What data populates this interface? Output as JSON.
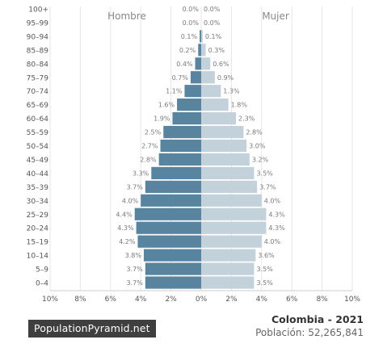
{
  "chart_data": {
    "type": "bar",
    "orientation": "horizontal-pyramid",
    "categories": [
      "0-4",
      "5-9",
      "10-14",
      "15-19",
      "20-24",
      "25-29",
      "30-34",
      "35-39",
      "40-44",
      "45-49",
      "50-54",
      "55-59",
      "60-64",
      "65-69",
      "70-74",
      "75-79",
      "80-84",
      "85-89",
      "90-94",
      "95-99",
      "100+"
    ],
    "category_labels": [
      "0–4",
      "5–9",
      "10–14",
      "15–19",
      "20–24",
      "25–29",
      "30–34",
      "35–39",
      "40–44",
      "45–49",
      "50–54",
      "55–59",
      "60–64",
      "65–69",
      "70–74",
      "75–79",
      "80–84",
      "85–89",
      "90–94",
      "95–99",
      "100+"
    ],
    "series": [
      {
        "name": "Hombre",
        "color": "#58849f",
        "values": [
          3.7,
          3.7,
          3.8,
          4.2,
          4.3,
          4.4,
          4.0,
          3.7,
          3.3,
          2.8,
          2.7,
          2.5,
          1.9,
          1.6,
          1.1,
          0.7,
          0.4,
          0.2,
          0.1,
          0.0,
          0.0
        ]
      },
      {
        "name": "Mujer",
        "color": "#c3d1da",
        "values": [
          3.5,
          3.5,
          3.6,
          4.0,
          4.3,
          4.3,
          4.0,
          3.7,
          3.5,
          3.2,
          3.0,
          2.8,
          2.3,
          1.8,
          1.3,
          0.9,
          0.6,
          0.3,
          0.1,
          0.0,
          0.0
        ]
      }
    ],
    "data_labels_left": [
      "3.7%",
      "3.7%",
      "3.8%",
      "4.2%",
      "4.3%",
      "4.4%",
      "4.0%",
      "3.7%",
      "3.3%",
      "2.8%",
      "2.7%",
      "2.5%",
      "1.9%",
      "1.6%",
      "1.1%",
      "0.7%",
      "0.4%",
      "0.2%",
      "0.1%",
      "0.0%",
      "0.0%"
    ],
    "data_labels_right": [
      "3.5%",
      "3.5%",
      "3.6%",
      "4.0%",
      "4.3%",
      "4.3%",
      "4.0%",
      "3.7%",
      "3.5%",
      "3.2%",
      "3.0%",
      "2.8%",
      "2.3%",
      "1.8%",
      "1.3%",
      "0.9%",
      "0.6%",
      "0.3%",
      "0.1%",
      "0.0%",
      "0.0%"
    ],
    "xlim": [
      -10,
      10
    ],
    "xticks": [
      -10,
      -8,
      -6,
      -4,
      -2,
      0,
      2,
      4,
      6,
      8,
      10
    ],
    "xtick_labels": [
      "10%",
      "8%",
      "6%",
      "4%",
      "2%",
      "0%",
      "2%",
      "4%",
      "6%",
      "8%",
      "10%"
    ],
    "left_title": "Hombre",
    "right_title": "Mujer",
    "grid": true
  },
  "footer": {
    "logo": "PopulationPyramid.net",
    "country_year": "Colombia - 2021",
    "population": "Población: 52,265,841"
  }
}
